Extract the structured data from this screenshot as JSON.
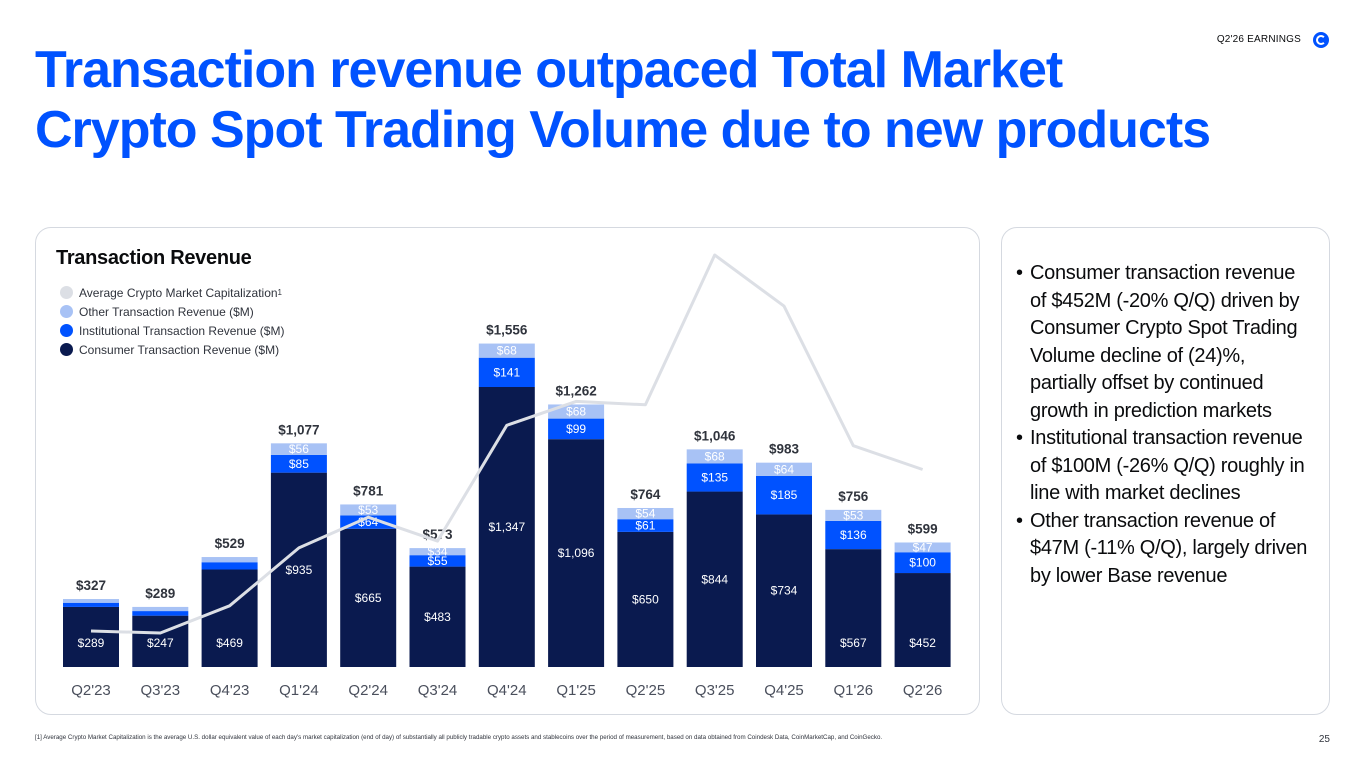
{
  "header": {
    "tag": "Q2'26 EARNINGS",
    "logo_icon": "coinbase-logo-icon"
  },
  "title_lines": [
    "Transaction revenue outpaced Total Market",
    "Crypto Spot Trading Volume due to new products"
  ],
  "colors": {
    "title": "#0052ff",
    "consumer": "#0a1a4f",
    "institutional": "#0052ff",
    "other": "#a8c2f5",
    "market_cap": "#dcdfe5"
  },
  "chart_data": {
    "type": "bar",
    "stacked": true,
    "title": "Transaction Revenue",
    "categories": [
      "Q2'23",
      "Q3'23",
      "Q4'23",
      "Q1'24",
      "Q2'24",
      "Q3'24",
      "Q4'24",
      "Q1'25",
      "Q2'25",
      "Q3'25",
      "Q4'25",
      "Q1'26",
      "Q2'26"
    ],
    "series": [
      {
        "name": "Consumer Transaction Revenue ($M)",
        "values": [
          289,
          247,
          469,
          935,
          665,
          483,
          1347,
          1096,
          650,
          844,
          734,
          567,
          452
        ],
        "labels": [
          "$289",
          "$247",
          "$469",
          "$935",
          "$665",
          "$483",
          "$1,347",
          "$1,096",
          "$650",
          "$844",
          "$734",
          "$567",
          "$452"
        ]
      },
      {
        "name": "Institutional Transaction Revenue ($M)",
        "values": [
          20,
          22,
          35,
          85,
          64,
          55,
          141,
          99,
          61,
          135,
          185,
          136,
          100
        ],
        "labels": [
          "",
          "",
          "",
          "$85",
          "$64",
          "$55",
          "$141",
          "$99",
          "$61",
          "$135",
          "$185",
          "$136",
          "$100"
        ]
      },
      {
        "name": "Other Transaction Revenue ($M)",
        "values": [
          18,
          20,
          25,
          56,
          53,
          34,
          68,
          68,
          54,
          68,
          64,
          53,
          47
        ],
        "labels": [
          "",
          "",
          "",
          "$56",
          "$53",
          "$34",
          "$68",
          "$68",
          "$54",
          "$68",
          "$64",
          "$53",
          "$47"
        ]
      }
    ],
    "totals": [
      "$327",
      "$289",
      "$529",
      "$1,077",
      "$781",
      "$573",
      "$1,556",
      "$1,262",
      "$764",
      "$1,046",
      "$983",
      "$756",
      "$599"
    ],
    "line": {
      "name": "Average Crypto Market Capitalization",
      "legend_label": "Average Crypto Market Capitalization",
      "footnote_mark": "1",
      "values": [
        1.18,
        1.15,
        1.55,
        2.4,
        2.85,
        2.5,
        4.2,
        4.55,
        4.5,
        6.7,
        5.95,
        3.9,
        3.55
      ],
      "axis": "hidden"
    },
    "legend_order": [
      "Average Crypto Market Capitalization",
      "Other Transaction Revenue ($M)",
      "Institutional Transaction Revenue ($M)",
      "Consumer Transaction Revenue ($M)"
    ],
    "legend_position": "top-left",
    "ylim": [
      0,
      1800
    ],
    "grid": false
  },
  "bullets": [
    "Consumer transaction revenue of $452M (-20% Q/Q) driven by Consumer Crypto Spot Trading Volume decline of (24)%, partially offset by continued growth in prediction markets",
    "Institutional transaction revenue of $100M (-26% Q/Q) roughly in line with market declines",
    "Other transaction revenue of $47M (-11% Q/Q), largely driven by lower Base revenue"
  ],
  "footnote": "[1] Average Crypto Market Capitalization is the average U.S. dollar equivalent value of each day's market capitalization (end of day) of substantially all publicly tradable crypto assets and stablecoins over the period of measurement, based on data obtained from Coindesk Data, CoinMarketCap, and CoinGecko.",
  "page_number": "25"
}
